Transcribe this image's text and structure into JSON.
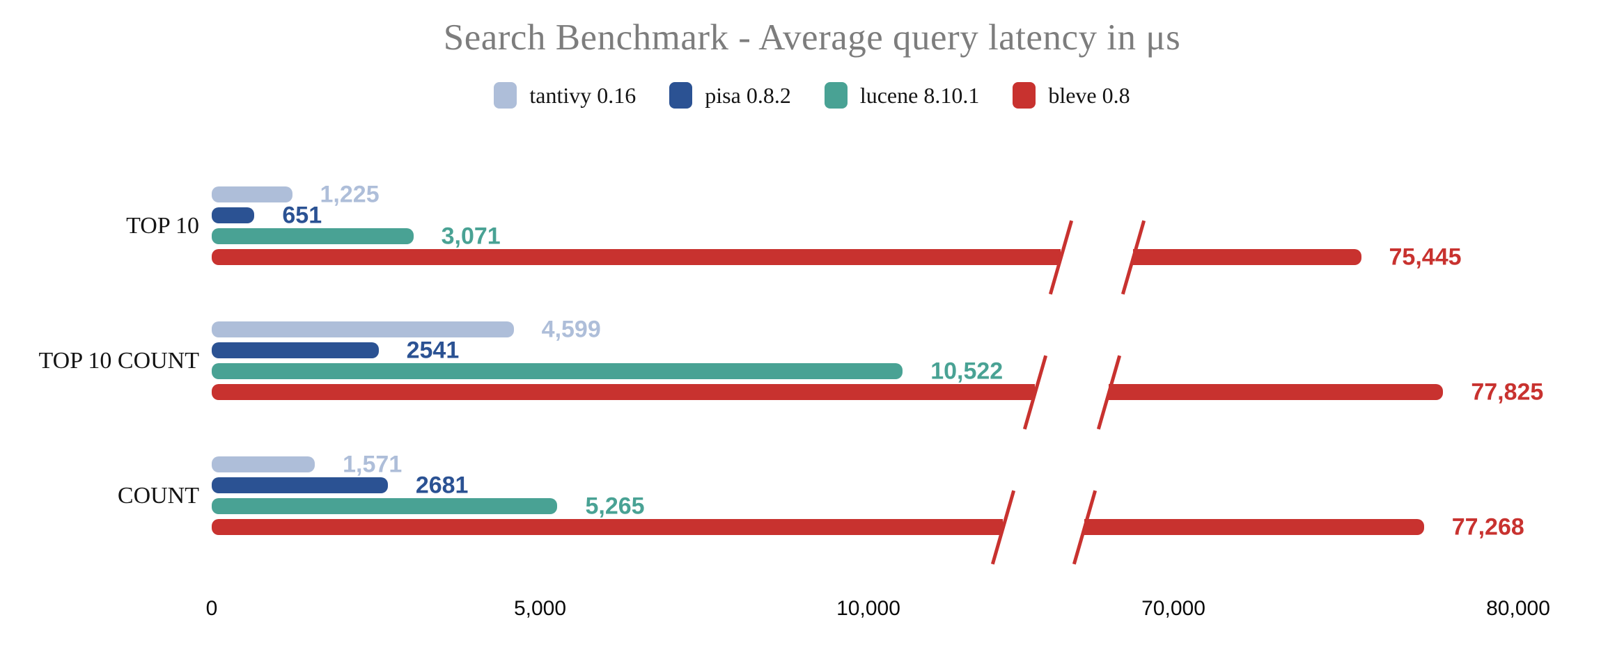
{
  "page": {
    "background": "#ffffff"
  },
  "chart_data": {
    "type": "bar",
    "orientation": "horizontal",
    "title": "Search Benchmark - Average query latency in μs",
    "unit": "μs",
    "title_color": "#7d7d7d",
    "text_color": "#141414",
    "grid": false,
    "legend_position": "top",
    "categories": [
      "TOP 10",
      "TOP 10 COUNT",
      "COUNT"
    ],
    "series": [
      {
        "name": "tantivy 0.16",
        "color": "#aebed9",
        "values": [
          1225,
          4599,
          1571
        ],
        "value_labels": [
          "1,225",
          "4,599",
          "1,571"
        ]
      },
      {
        "name": "pisa 0.8.2",
        "color": "#2b5293",
        "values": [
          651,
          2541,
          2681
        ],
        "value_labels": [
          "651",
          "2541",
          "2681"
        ]
      },
      {
        "name": "lucene 8.10.1",
        "color": "#49a294",
        "values": [
          3071,
          10522,
          5265
        ],
        "value_labels": [
          "3,071",
          "10,522",
          "5,265"
        ]
      },
      {
        "name": "bleve 0.8",
        "color": "#c8322f",
        "values": [
          75445,
          77825,
          77268
        ],
        "value_labels": [
          "75,445",
          "77,825",
          "77,268"
        ]
      }
    ],
    "x_axis": {
      "ticks": [
        {
          "value": 0,
          "label": "0"
        },
        {
          "value": 5000,
          "label": "5,000"
        },
        {
          "value": 10000,
          "label": "10,000"
        },
        {
          "value": 70000,
          "label": "70,000"
        },
        {
          "value": 80000,
          "label": "80,000"
        }
      ],
      "break": {
        "after_value": 12000,
        "resume_value": 69000
      }
    }
  }
}
